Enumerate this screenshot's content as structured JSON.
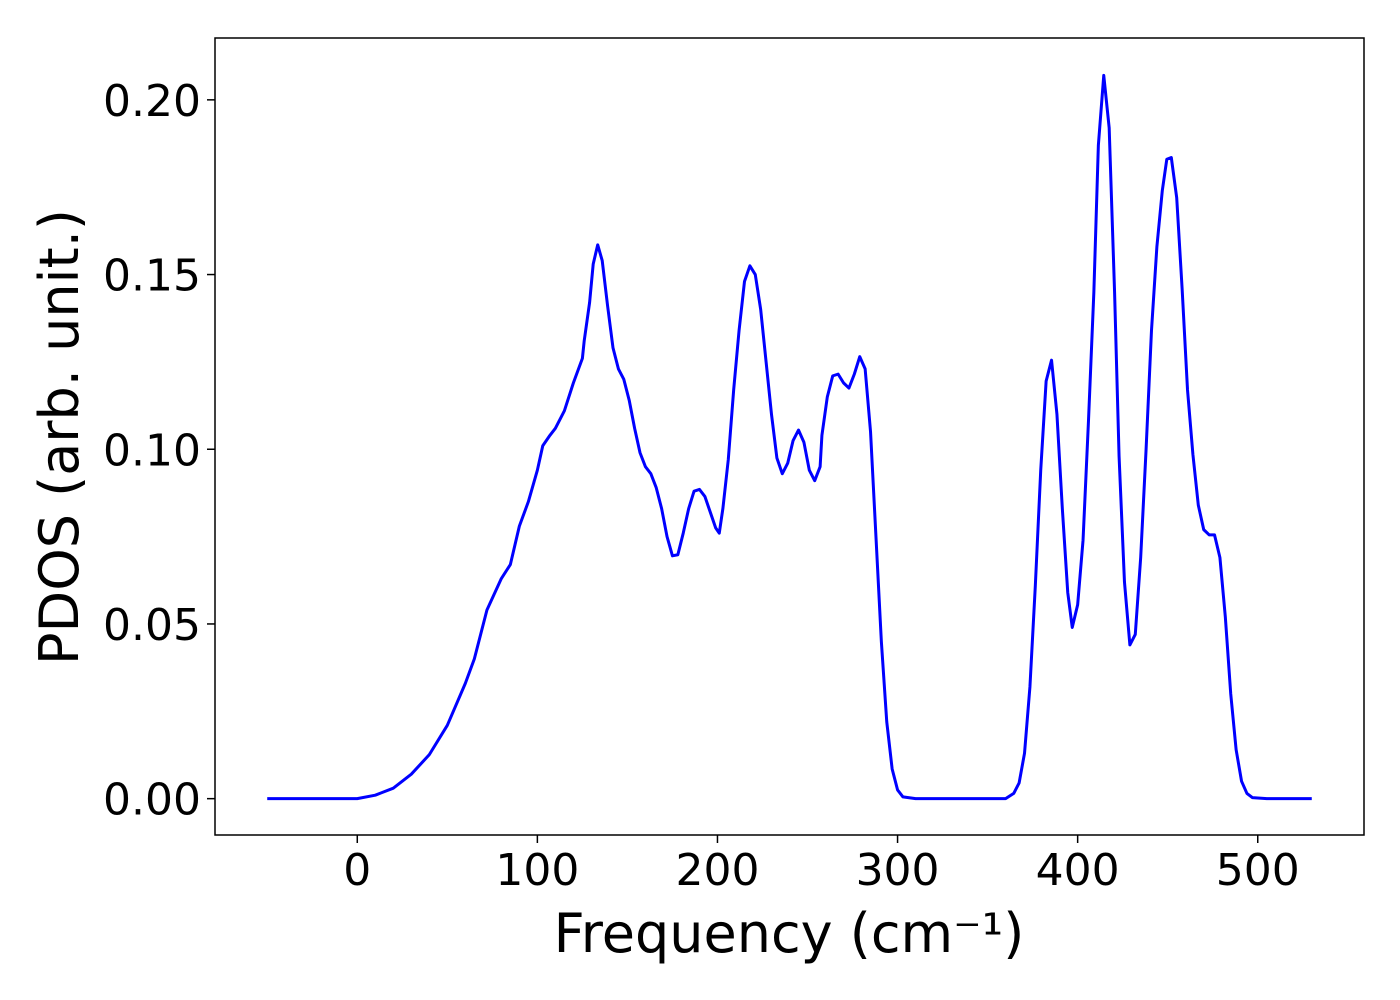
{
  "chart_data": {
    "type": "line",
    "xlabel": "Frequency (cm⁻¹)",
    "ylabel": "PDOS (arb. unit.)",
    "x": [
      -50,
      0,
      10,
      20,
      30,
      40,
      50,
      60,
      65,
      72,
      80,
      85,
      90,
      95,
      100,
      103,
      107,
      110,
      115,
      120,
      125,
      126,
      129,
      131,
      133.5,
      136,
      139,
      142,
      145,
      148,
      151,
      154,
      157,
      160,
      163,
      166,
      169,
      172,
      175,
      178,
      181,
      184,
      187,
      190,
      193,
      196,
      199,
      201,
      203,
      206,
      209,
      212,
      215,
      218,
      221,
      224,
      227,
      230,
      233,
      236,
      239,
      242,
      245,
      248,
      251,
      254,
      257,
      258,
      261,
      264,
      267,
      270,
      273,
      276,
      279,
      282,
      285,
      288,
      291,
      294,
      297,
      300,
      303,
      310,
      360,
      361.5,
      364.5,
      367.5,
      370.5,
      373.5,
      376.5,
      379.5,
      382.5,
      385.5,
      388.5,
      391.5,
      394.5,
      397,
      400,
      403,
      406,
      409,
      411.5,
      414.5,
      417.5,
      420.5,
      423,
      426,
      429,
      432,
      435,
      438,
      441,
      444,
      447,
      449.5,
      452,
      455,
      458,
      461,
      464,
      467,
      470,
      473,
      476,
      479,
      482,
      485,
      488,
      491,
      494,
      497,
      505,
      530
    ],
    "series": [
      {
        "name": "PDOS",
        "color": "#0000ff",
        "values": [
          0,
          0,
          0.001,
          0.003,
          0.007,
          0.0126,
          0.021,
          0.033,
          0.04,
          0.054,
          0.063,
          0.067,
          0.078,
          0.085,
          0.094,
          0.101,
          0.104,
          0.106,
          0.111,
          0.119,
          0.126,
          0.131,
          0.142,
          0.153,
          0.1585,
          0.154,
          0.141,
          0.129,
          0.123,
          0.12,
          0.114,
          0.106,
          0.099,
          0.095,
          0.093,
          0.089,
          0.083,
          0.075,
          0.0695,
          0.0698,
          0.076,
          0.083,
          0.088,
          0.0885,
          0.0865,
          0.082,
          0.0775,
          0.076,
          0.083,
          0.097,
          0.117,
          0.134,
          0.148,
          0.1525,
          0.15,
          0.14,
          0.125,
          0.11,
          0.0975,
          0.093,
          0.096,
          0.1025,
          0.1055,
          0.102,
          0.094,
          0.091,
          0.095,
          0.104,
          0.115,
          0.121,
          0.1215,
          0.119,
          0.1175,
          0.1215,
          0.1265,
          0.123,
          0.105,
          0.075,
          0.045,
          0.022,
          0.0085,
          0.0025,
          0.0005,
          0,
          0,
          0.0005,
          0.0015,
          0.0045,
          0.013,
          0.032,
          0.061,
          0.094,
          0.1195,
          0.1255,
          0.11,
          0.083,
          0.059,
          0.049,
          0.0555,
          0.074,
          0.108,
          0.145,
          0.187,
          0.207,
          0.192,
          0.145,
          0.098,
          0.062,
          0.044,
          0.047,
          0.069,
          0.1,
          0.134,
          0.158,
          0.174,
          0.183,
          0.1835,
          0.172,
          0.146,
          0.117,
          0.0985,
          0.084,
          0.077,
          0.0755,
          0.0755,
          0.069,
          0.052,
          0.03,
          0.014,
          0.005,
          0.0015,
          0.0003,
          0,
          0
        ]
      }
    ],
    "xlim": [
      -79,
      559
    ],
    "xticks": [
      0,
      100,
      200,
      300,
      400,
      500
    ],
    "ylim": [
      -0.0104,
      0.2177
    ],
    "yticks": [
      {
        "value": 0,
        "label": "0.00"
      },
      0.05,
      {
        "value": 0.1,
        "label": "0.10"
      },
      0.15,
      {
        "value": 0.2,
        "label": "0.20"
      }
    ]
  }
}
